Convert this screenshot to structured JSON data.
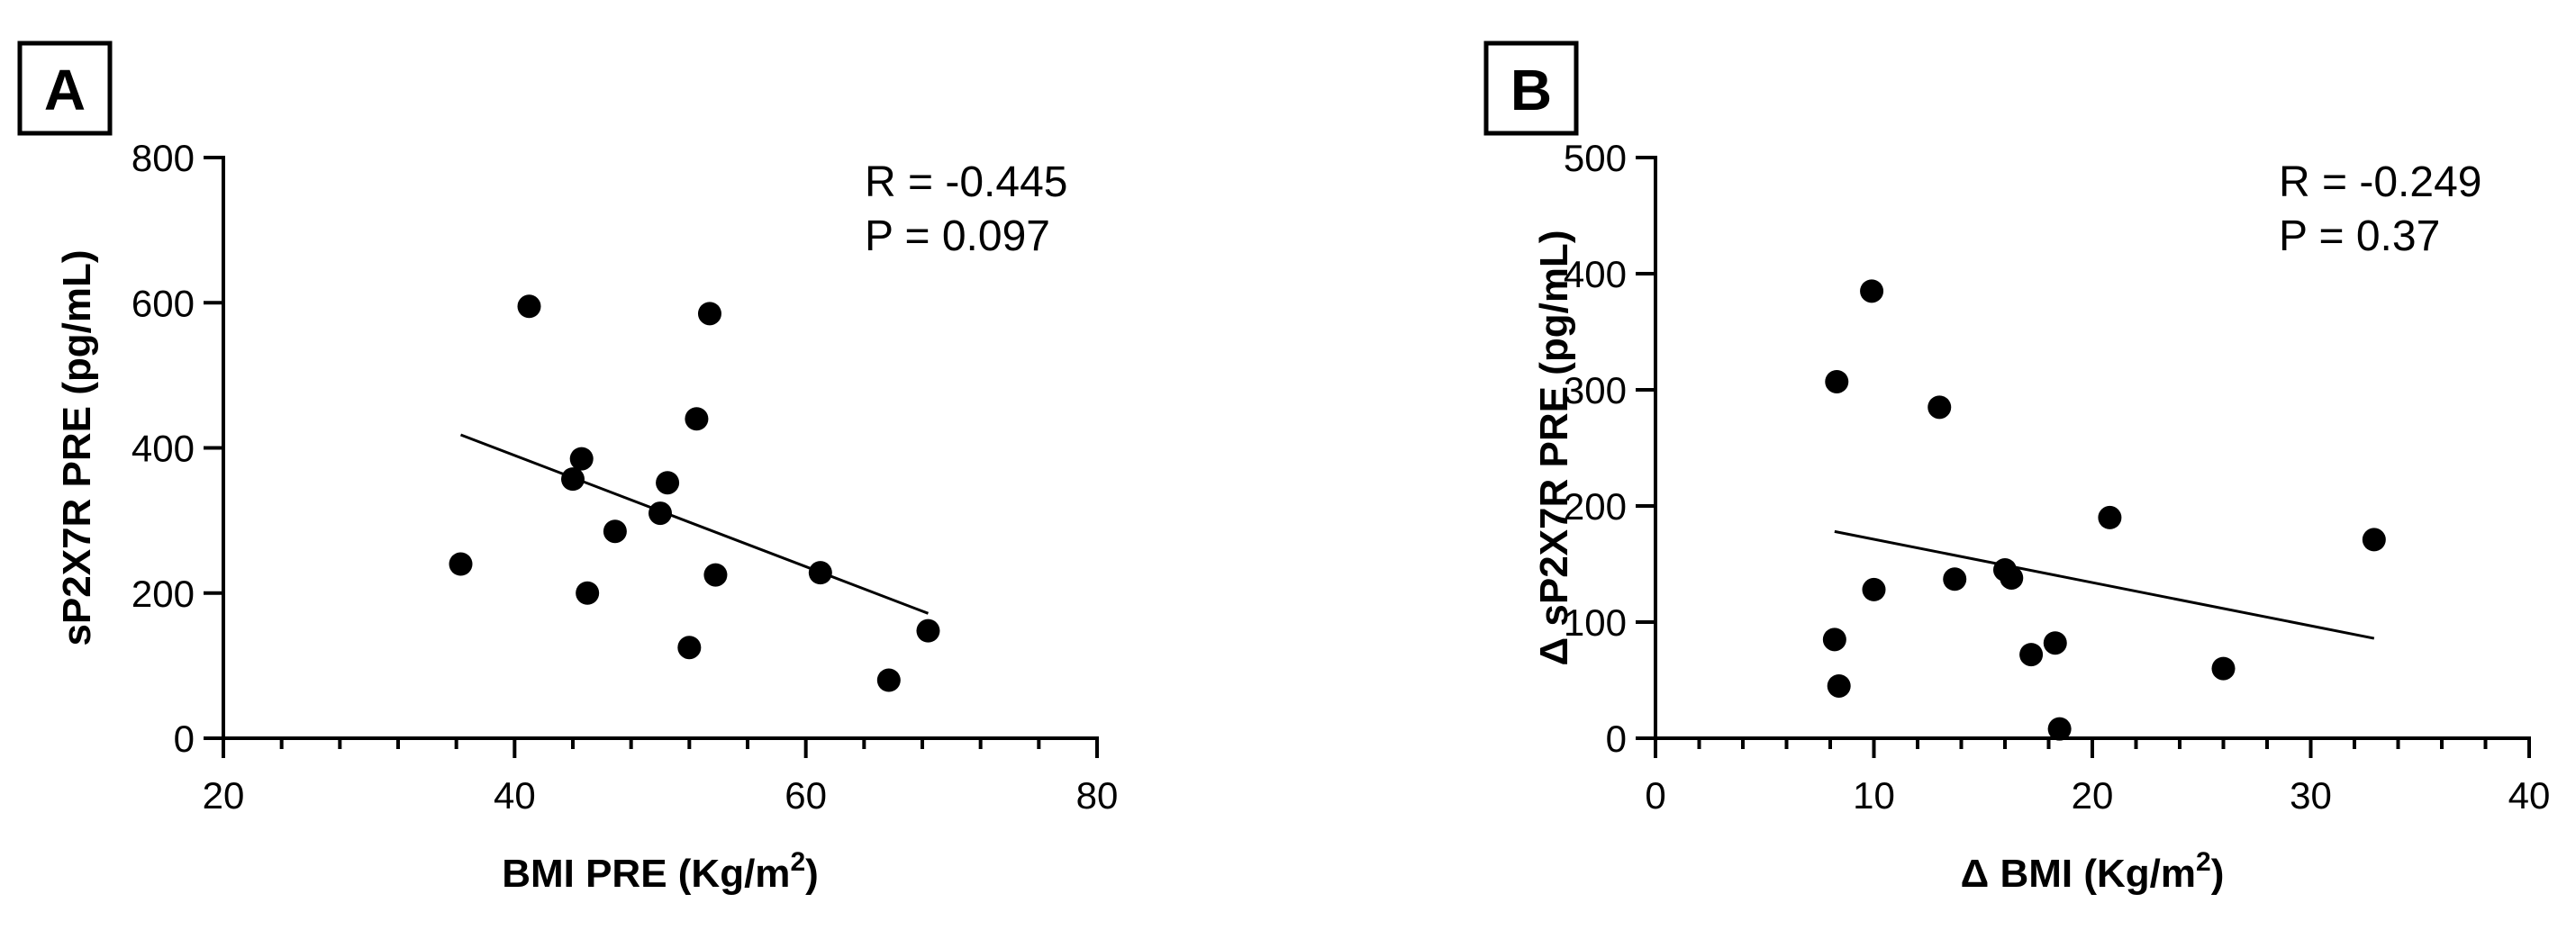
{
  "chart_data": [
    {
      "panel": "A",
      "type": "scatter",
      "xlabel": "BMI PRE (Kg/m",
      "xlabel_sup": "2",
      "xlabel_suffix": ")",
      "ylabel": "sP2X7R PRE (pg/mL)",
      "xlim": [
        20,
        80
      ],
      "ylim": [
        0,
        800
      ],
      "xticks": [
        20,
        40,
        60,
        80
      ],
      "yticks": [
        0,
        200,
        400,
        600,
        800
      ],
      "x_minor_step": 4,
      "r_text": "R = -0.445",
      "p_text": "P = 0.097",
      "points": [
        {
          "x": 36.3,
          "y": 240
        },
        {
          "x": 41.0,
          "y": 595
        },
        {
          "x": 44.0,
          "y": 357
        },
        {
          "x": 44.6,
          "y": 385
        },
        {
          "x": 45.0,
          "y": 200
        },
        {
          "x": 46.9,
          "y": 285
        },
        {
          "x": 50.0,
          "y": 310
        },
        {
          "x": 50.5,
          "y": 352
        },
        {
          "x": 52.0,
          "y": 125
        },
        {
          "x": 52.5,
          "y": 440
        },
        {
          "x": 53.4,
          "y": 585
        },
        {
          "x": 53.8,
          "y": 225
        },
        {
          "x": 61.0,
          "y": 228
        },
        {
          "x": 65.7,
          "y": 80
        },
        {
          "x": 68.4,
          "y": 148
        }
      ],
      "fit_line": [
        {
          "x": 36.3,
          "y": 418
        },
        {
          "x": 68.4,
          "y": 172
        }
      ]
    },
    {
      "panel": "B",
      "type": "scatter",
      "xlabel": "Δ BMI (Kg/m",
      "xlabel_sup": "2",
      "xlabel_suffix": ")",
      "ylabel": "Δ sP2X7R PRE (pg/mL)",
      "xlim": [
        0,
        40
      ],
      "ylim": [
        0,
        500
      ],
      "xticks": [
        0,
        10,
        20,
        30,
        40
      ],
      "yticks": [
        0,
        100,
        200,
        300,
        400,
        500
      ],
      "x_minor_step": 2,
      "r_text": "R = -0.249",
      "p_text": "P = 0.37",
      "points": [
        {
          "x": 8.2,
          "y": 85
        },
        {
          "x": 8.3,
          "y": 307
        },
        {
          "x": 8.4,
          "y": 45
        },
        {
          "x": 9.9,
          "y": 385
        },
        {
          "x": 10.0,
          "y": 128
        },
        {
          "x": 13.0,
          "y": 285
        },
        {
          "x": 13.7,
          "y": 137
        },
        {
          "x": 16.0,
          "y": 145
        },
        {
          "x": 16.3,
          "y": 138
        },
        {
          "x": 17.2,
          "y": 72
        },
        {
          "x": 18.3,
          "y": 82
        },
        {
          "x": 18.5,
          "y": 8
        },
        {
          "x": 20.8,
          "y": 190
        },
        {
          "x": 26.0,
          "y": 60
        },
        {
          "x": 32.9,
          "y": 171
        }
      ],
      "fit_line": [
        {
          "x": 8.2,
          "y": 178
        },
        {
          "x": 32.9,
          "y": 86
        }
      ]
    }
  ]
}
